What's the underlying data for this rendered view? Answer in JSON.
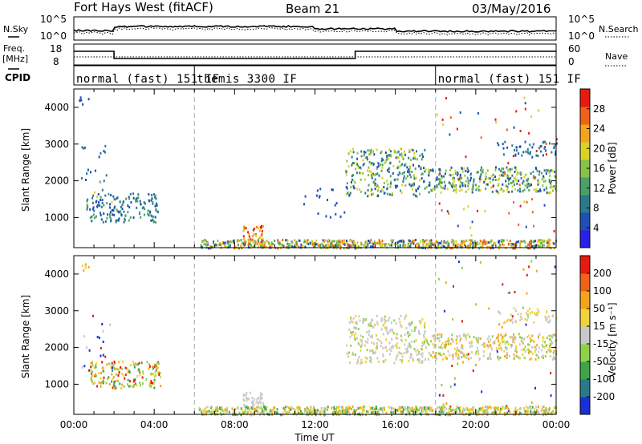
{
  "header": {
    "station": "Fort Hays West (fitACF)",
    "beam": "Beam 21",
    "date": "03/May/2016"
  },
  "strips": {
    "nsky_label": "N.Sky",
    "nsky_ticks": [
      "10^5",
      "10^0"
    ],
    "nsearch_label": "N.Search",
    "freq_label_1": "Freq.",
    "freq_label_2": "[MHz]",
    "freq_ticks": [
      "18",
      "8"
    ],
    "nave_label": "Nave",
    "nave_ticks": [
      "60",
      "0"
    ],
    "cpid_label": "CPID",
    "cpid_segments": [
      {
        "label": "normal (fast) 151 IF",
        "start": 0,
        "end": 6
      },
      {
        "label": "themis 3300 IF",
        "start": 6,
        "end": 18
      },
      {
        "label": "normal (fast) 151 IF",
        "start": 18,
        "end": 24
      }
    ],
    "freq_steps": [
      {
        "start": 0,
        "end": 2,
        "level": "high"
      },
      {
        "start": 2,
        "end": 14,
        "level": "low"
      },
      {
        "start": 14,
        "end": 24,
        "level": "high"
      }
    ]
  },
  "chart_data": [
    {
      "type": "heatmap",
      "name": "power",
      "ylabel": "Slant Range [km]",
      "y_ticks": [
        "4000",
        "3000",
        "2000",
        "1000"
      ],
      "ylim": [
        180,
        4500
      ],
      "xlim": [
        0,
        24
      ],
      "colorbar_label": "Power [dB]",
      "colorbar_ticks": [
        "28",
        "24",
        "20",
        "16",
        "12",
        "8",
        "4"
      ],
      "colors": [
        "#2b1fe8",
        "#1f4fb5",
        "#2a7a8c",
        "#4aa06a",
        "#86c24a",
        "#d8d22a",
        "#f2a41c",
        "#f0621a",
        "#e81a10"
      ],
      "regions": [
        {
          "t0": 0.6,
          "t1": 4.2,
          "r0": 900,
          "r1": 1700,
          "c": [
            1,
            2,
            3
          ],
          "n": 160
        },
        {
          "t0": 0.2,
          "t1": 0.8,
          "r0": 4100,
          "r1": 4300,
          "c": [
            1
          ],
          "n": 6
        },
        {
          "t0": 0.3,
          "t1": 1.9,
          "r0": 1400,
          "r1": 3000,
          "c": [
            1,
            2,
            5
          ],
          "n": 24
        },
        {
          "t0": 8.4,
          "t1": 9.4,
          "r0": 350,
          "r1": 800,
          "c": [
            5,
            6,
            7,
            8
          ],
          "n": 45
        },
        {
          "t0": 13.5,
          "t1": 17.5,
          "r0": 1600,
          "r1": 2900,
          "c": [
            1,
            2,
            3,
            4,
            5
          ],
          "n": 280
        },
        {
          "t0": 17.5,
          "t1": 24,
          "r0": 1700,
          "r1": 2400,
          "c": [
            1,
            2,
            3,
            4,
            5
          ],
          "n": 330
        },
        {
          "t0": 21,
          "t1": 24,
          "r0": 2700,
          "r1": 3100,
          "c": [
            1,
            2
          ],
          "n": 50
        },
        {
          "t0": 11.3,
          "t1": 14,
          "r0": 1000,
          "r1": 1900,
          "c": [
            1
          ],
          "n": 22
        },
        {
          "t0": 18,
          "t1": 24,
          "r0": 300,
          "r1": 4400,
          "c": [
            1,
            5,
            7,
            8
          ],
          "n": 70
        },
        {
          "t0": 6.2,
          "t1": 24,
          "r0": 190,
          "r1": 420,
          "c": [
            1,
            3,
            4,
            5,
            6,
            7
          ],
          "n": 700
        }
      ]
    },
    {
      "type": "heatmap",
      "name": "velocity",
      "ylabel": "Slant Range [km]",
      "y_ticks": [
        "4000",
        "3000",
        "2000",
        "1000"
      ],
      "ylim": [
        180,
        4500
      ],
      "xlim": [
        0,
        24
      ],
      "x_ticks": [
        "00:00",
        "04:00",
        "08:00",
        "12:00",
        "16:00",
        "20:00",
        "00:00"
      ],
      "xlabel": "Time UT",
      "colorbar_label": "Velocity [m s⁻¹]",
      "colorbar_ticks": [
        "200",
        "100",
        "50",
        "15",
        "-15",
        "-50",
        "-100",
        "-200"
      ],
      "colors": [
        "#1830d8",
        "#2a7a8c",
        "#3ea44a",
        "#8ed24a",
        "#c8c8c8",
        "#f2d23a",
        "#f2a41c",
        "#f0621a",
        "#e81a10"
      ],
      "regions": [
        {
          "t0": 0.8,
          "t1": 4.3,
          "r0": 900,
          "r1": 1650,
          "c": [
            2,
            3,
            5,
            6,
            8
          ],
          "n": 170
        },
        {
          "t0": 0.2,
          "t1": 0.8,
          "r0": 4100,
          "r1": 4300,
          "c": [
            5,
            6
          ],
          "n": 6
        },
        {
          "t0": 0.3,
          "t1": 1.9,
          "r0": 1400,
          "r1": 3000,
          "c": [
            0,
            4,
            8
          ],
          "n": 20
        },
        {
          "t0": 8.4,
          "t1": 9.4,
          "r0": 350,
          "r1": 800,
          "c": [
            4
          ],
          "n": 50
        },
        {
          "t0": 13.5,
          "t1": 17.5,
          "r0": 1600,
          "r1": 2900,
          "c": [
            4,
            4,
            4,
            5,
            3
          ],
          "n": 280
        },
        {
          "t0": 17.5,
          "t1": 24,
          "r0": 1700,
          "r1": 2400,
          "c": [
            4,
            4,
            5,
            6,
            3
          ],
          "n": 330
        },
        {
          "t0": 21,
          "t1": 24,
          "r0": 2700,
          "r1": 3100,
          "c": [
            4,
            5
          ],
          "n": 50
        },
        {
          "t0": 18,
          "t1": 24,
          "r0": 300,
          "r1": 4400,
          "c": [
            0,
            6,
            8,
            3
          ],
          "n": 60
        },
        {
          "t0": 6.2,
          "t1": 24,
          "r0": 190,
          "r1": 420,
          "c": [
            3,
            2,
            5,
            6,
            4
          ],
          "n": 700
        }
      ]
    }
  ]
}
